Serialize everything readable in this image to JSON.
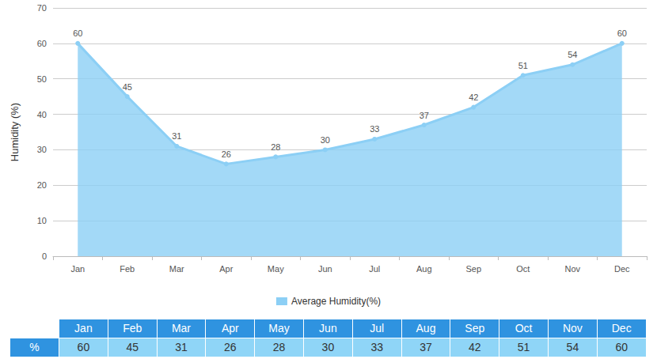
{
  "chart_data": {
    "type": "line",
    "y_label": "Humidity (%)",
    "categories": [
      "Jan",
      "Feb",
      "Mar",
      "Apr",
      "May",
      "Jun",
      "Jul",
      "Aug",
      "Sep",
      "Oct",
      "Nov",
      "Dec"
    ],
    "series": [
      {
        "name": "Average Humidity(%)",
        "color": "#8ccff5",
        "values": [
          60,
          45,
          31,
          26,
          28,
          30,
          33,
          37,
          42,
          51,
          54,
          60
        ]
      }
    ],
    "ylim": [
      0,
      70
    ],
    "yticks": [
      0,
      10,
      20,
      30,
      40,
      50,
      60,
      70
    ],
    "grid": true,
    "data_labels": true,
    "legend": "bottom"
  },
  "table": {
    "header": [
      "Jan",
      "Feb",
      "Mar",
      "Apr",
      "May",
      "Jun",
      "Jul",
      "Aug",
      "Sep",
      "Oct",
      "Nov",
      "Dec"
    ],
    "rows": [
      [
        "%",
        60,
        45,
        31,
        26,
        28,
        30,
        33,
        37,
        42,
        51,
        54,
        60
      ]
    ]
  }
}
